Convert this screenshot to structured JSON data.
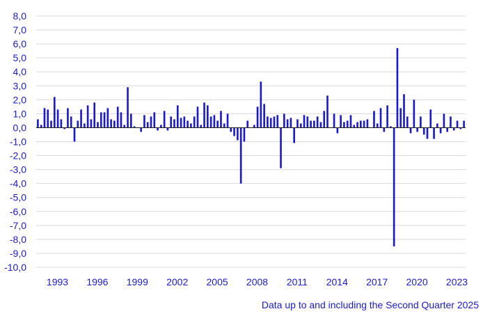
{
  "colors": {
    "bar": "#1a1acc",
    "text": "#1a1acc",
    "grid": "#d9d9d9",
    "zero_line": "#1a1a1a"
  },
  "footnote": "Data up to and including the Second Quarter 2025",
  "chart_data": {
    "type": "bar",
    "frequency": "quarterly",
    "x_start": "1992 Q1",
    "x_end": "2025 Q2",
    "ylim": [
      -10,
      8
    ],
    "y_ticks": [
      8,
      7,
      6,
      5,
      4,
      3,
      2,
      1,
      0,
      -1,
      -2,
      -3,
      -4,
      -5,
      -6,
      -7,
      -8,
      -9,
      -10
    ],
    "y_tick_labels": [
      "8,0",
      "7,0",
      "6,0",
      "5,0",
      "4,0",
      "3,0",
      "2,0",
      "1,0",
      "0,0",
      "-1,0",
      "-2,0",
      "-3,0",
      "-4,0",
      "-5,0",
      "-6,0",
      "-7,0",
      "-8,0",
      "-9,0",
      "-10,0"
    ],
    "x_tick_labels": [
      "1993",
      "1996",
      "1999",
      "2002",
      "2005",
      "2008",
      "2011",
      "2014",
      "2017",
      "2020",
      "2023"
    ],
    "grid": true,
    "legend": "none",
    "title": "",
    "xlabel": "",
    "ylabel": "",
    "values": [
      0.6,
      0.2,
      1.4,
      1.3,
      0.5,
      2.2,
      1.3,
      0.6,
      -0.1,
      1.4,
      0.8,
      -1.0,
      0.5,
      1.3,
      0.3,
      1.6,
      0.6,
      1.8,
      0.4,
      1.1,
      1.1,
      1.4,
      0.6,
      0.5,
      1.5,
      1.1,
      0.2,
      2.9,
      1.0,
      0.1,
      0.0,
      -0.3,
      0.9,
      0.4,
      0.8,
      1.1,
      -0.2,
      0.2,
      1.2,
      -0.2,
      0.8,
      0.6,
      1.6,
      0.7,
      0.8,
      0.5,
      0.3,
      0.8,
      1.5,
      0.2,
      1.8,
      1.6,
      0.8,
      0.9,
      0.5,
      1.2,
      0.3,
      1.0,
      -0.3,
      -0.6,
      -0.9,
      -4.0,
      -1.0,
      0.5,
      0.0,
      0.2,
      1.5,
      3.3,
      1.7,
      0.8,
      0.7,
      0.8,
      0.9,
      -2.9,
      1.0,
      0.6,
      0.7,
      -1.1,
      0.6,
      0.3,
      0.9,
      0.8,
      0.5,
      0.5,
      0.8,
      0.4,
      1.2,
      2.3,
      0.0,
      1.0,
      -0.4,
      0.9,
      0.4,
      0.5,
      0.9,
      0.2,
      0.4,
      0.5,
      0.5,
      0.6,
      0.0,
      1.2,
      0.3,
      1.4,
      -0.3,
      1.6,
      0.1,
      -8.5,
      5.7,
      1.4,
      2.4,
      0.8,
      -0.4,
      2.0,
      -0.3,
      0.8,
      -0.5,
      -0.8,
      1.3,
      -0.8,
      0.3,
      -0.4,
      1.0,
      -0.3,
      0.8,
      -0.2,
      0.5,
      -0.1,
      0.5
    ]
  }
}
